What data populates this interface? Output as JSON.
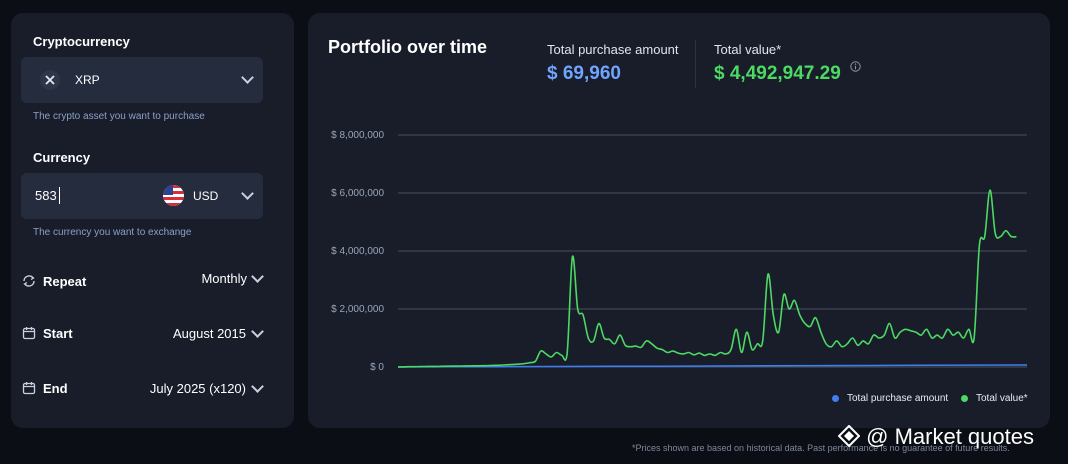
{
  "form": {
    "crypto_label": "Cryptocurrency",
    "crypto_value": "XRP",
    "crypto_helper": "The crypto asset you want to purchase",
    "currency_label": "Currency",
    "amount_value": "583",
    "currency_code": "USD",
    "currency_helper": "The currency you want to exchange",
    "repeat_label": "Repeat",
    "repeat_value": "Monthly",
    "start_label": "Start",
    "start_value": "August 2015",
    "end_label": "End",
    "end_value": "July 2025 (x120)"
  },
  "portfolio": {
    "title": "Portfolio over time",
    "total_purchase_label": "Total purchase amount",
    "total_purchase_value": "$ 69,960",
    "total_value_label": "Total value*",
    "total_value_value": "$ 4,492,947.29"
  },
  "colors": {
    "purchase": "#3d7ef0",
    "value": "#4cd964",
    "purchase_text": "#6fa4ff"
  },
  "chart_data": {
    "type": "line",
    "y_ticks": [
      "$ 8,000,000",
      "$ 6,000,000",
      "$ 4,000,000",
      "$ 2,000,000",
      "$ 0"
    ],
    "ylim": [
      0,
      8000000
    ],
    "xlim": [
      0,
      119
    ],
    "grid": true,
    "legend_placement": "bottom-right",
    "series": [
      {
        "name": "Total purchase amount",
        "color": "#3d7ef0",
        "values": [
          583,
          5830,
          11660,
          17490,
          23320,
          29150,
          34980,
          40810,
          46640,
          52470,
          58300,
          64130,
          69960
        ]
      },
      {
        "name": "Total value*",
        "color": "#4cd964",
        "values": [
          0,
          5000,
          9000,
          12000,
          15000,
          18000,
          20000,
          22000,
          25000,
          28000,
          30000,
          32000,
          35000,
          38000,
          40000,
          42000,
          45000,
          50000,
          55000,
          60000,
          70000,
          80000,
          90000,
          100000,
          120000,
          150000,
          200000,
          550000,
          450000,
          350000,
          500000,
          400000,
          450000,
          3800000,
          2000000,
          1800000,
          1000000,
          900000,
          1500000,
          1000000,
          950000,
          800000,
          1100000,
          750000,
          700000,
          720000,
          680000,
          900000,
          800000,
          650000,
          600000,
          500000,
          550000,
          480000,
          450000,
          500000,
          420000,
          480000,
          400000,
          450000,
          400000,
          500000,
          450000,
          600000,
          1300000,
          500000,
          1200000,
          600000,
          800000,
          900000,
          3200000,
          1800000,
          1200000,
          2500000,
          2000000,
          2300000,
          1800000,
          1500000,
          1400000,
          1700000,
          1200000,
          800000,
          700000,
          900000,
          700000,
          800000,
          1000000,
          750000,
          900000,
          800000,
          1100000,
          1000000,
          1100000,
          1500000,
          1000000,
          1200000,
          1300000,
          1250000,
          1200000,
          1100000,
          1300000,
          1000000,
          1100000,
          1000000,
          1300000,
          1100000,
          1200000,
          1000000,
          1300000,
          1000000,
          4200000,
          4500000,
          6100000,
          4600000,
          4500000,
          4700000,
          4500000,
          4492947
        ]
      }
    ]
  },
  "footer": {
    "disclaimer": "*Prices shown are based on historical data. Past performance is no guarantee of future results.",
    "watermark": "@ Market quotes"
  }
}
